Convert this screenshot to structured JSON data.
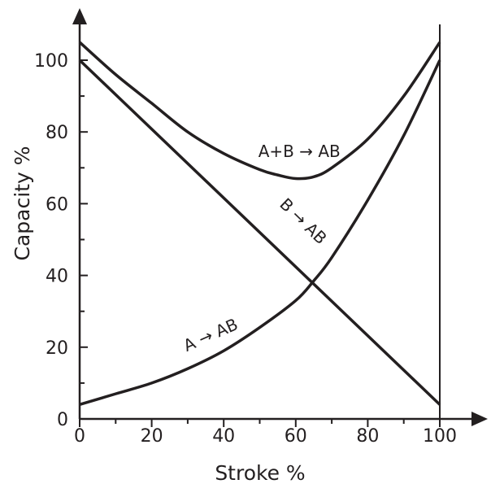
{
  "chart_data": {
    "type": "line",
    "title": "",
    "xlabel": "Stroke %",
    "ylabel": "Capacity %",
    "xlim": [
      0,
      100
    ],
    "ylim": [
      0,
      110
    ],
    "xticks": [
      0,
      20,
      40,
      60,
      80,
      100
    ],
    "yticks": [
      0,
      20,
      40,
      60,
      80,
      100
    ],
    "grid": false,
    "legend": "none",
    "line_color": "#231f20",
    "series": [
      {
        "label": "A+B → AB",
        "x": [
          0,
          10,
          20,
          30,
          40,
          50,
          55,
          60,
          65,
          70,
          80,
          90,
          100
        ],
        "y": [
          105,
          96,
          88,
          80,
          74,
          69.5,
          68,
          67,
          67.5,
          70,
          78,
          90,
          105
        ]
      },
      {
        "label": "B → AB",
        "x": [
          0,
          100
        ],
        "y": [
          100,
          4
        ]
      },
      {
        "label": "A → AB",
        "x": [
          0,
          10,
          20,
          30,
          40,
          50,
          60,
          65,
          70,
          80,
          90,
          100
        ],
        "y": [
          4,
          7,
          10,
          14,
          19,
          25.5,
          33,
          38.5,
          45,
          61,
          79,
          100
        ]
      }
    ],
    "annotations": [
      {
        "text": "A+B → AB",
        "at_x": 61,
        "at_y": 73,
        "rotate": 0
      },
      {
        "text": "B → AB",
        "at_x": 61,
        "at_y": 54,
        "rotate": 44
      },
      {
        "text": "A → AB",
        "at_x": 37,
        "at_y": 22,
        "rotate": -24
      }
    ],
    "vertical_line_x": 100
  }
}
